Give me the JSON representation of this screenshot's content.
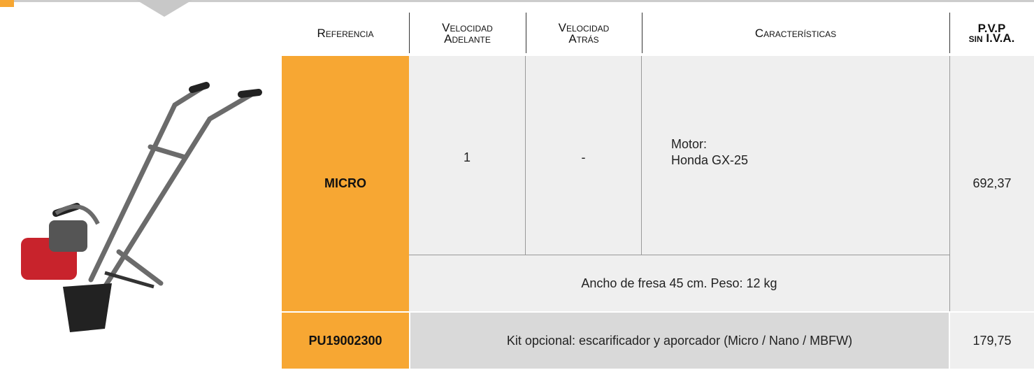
{
  "table": {
    "header": {
      "referencia": "Referencia",
      "velocidad_adelante": [
        "Velocidad",
        "Adelante"
      ],
      "velocidad_atras": [
        "Velocidad",
        "Atrás"
      ],
      "caracteristicas": "Características",
      "pvp": [
        "P.V.P",
        "sin I.V.A."
      ]
    },
    "rows": [
      {
        "referencia": "MICRO",
        "velocidad_adelante": "1",
        "velocidad_atras": "-",
        "caracteristicas": [
          "Motor:",
          "Honda GX-25"
        ],
        "nota": "Ancho de fresa 45 cm. Peso: 12 kg",
        "pvp": "692,37"
      },
      {
        "referencia": "PU19002300",
        "descripcion": "Kit opcional: escarificador y aporcador (Micro / Nano / MBFW)",
        "pvp": "179,75"
      }
    ]
  }
}
